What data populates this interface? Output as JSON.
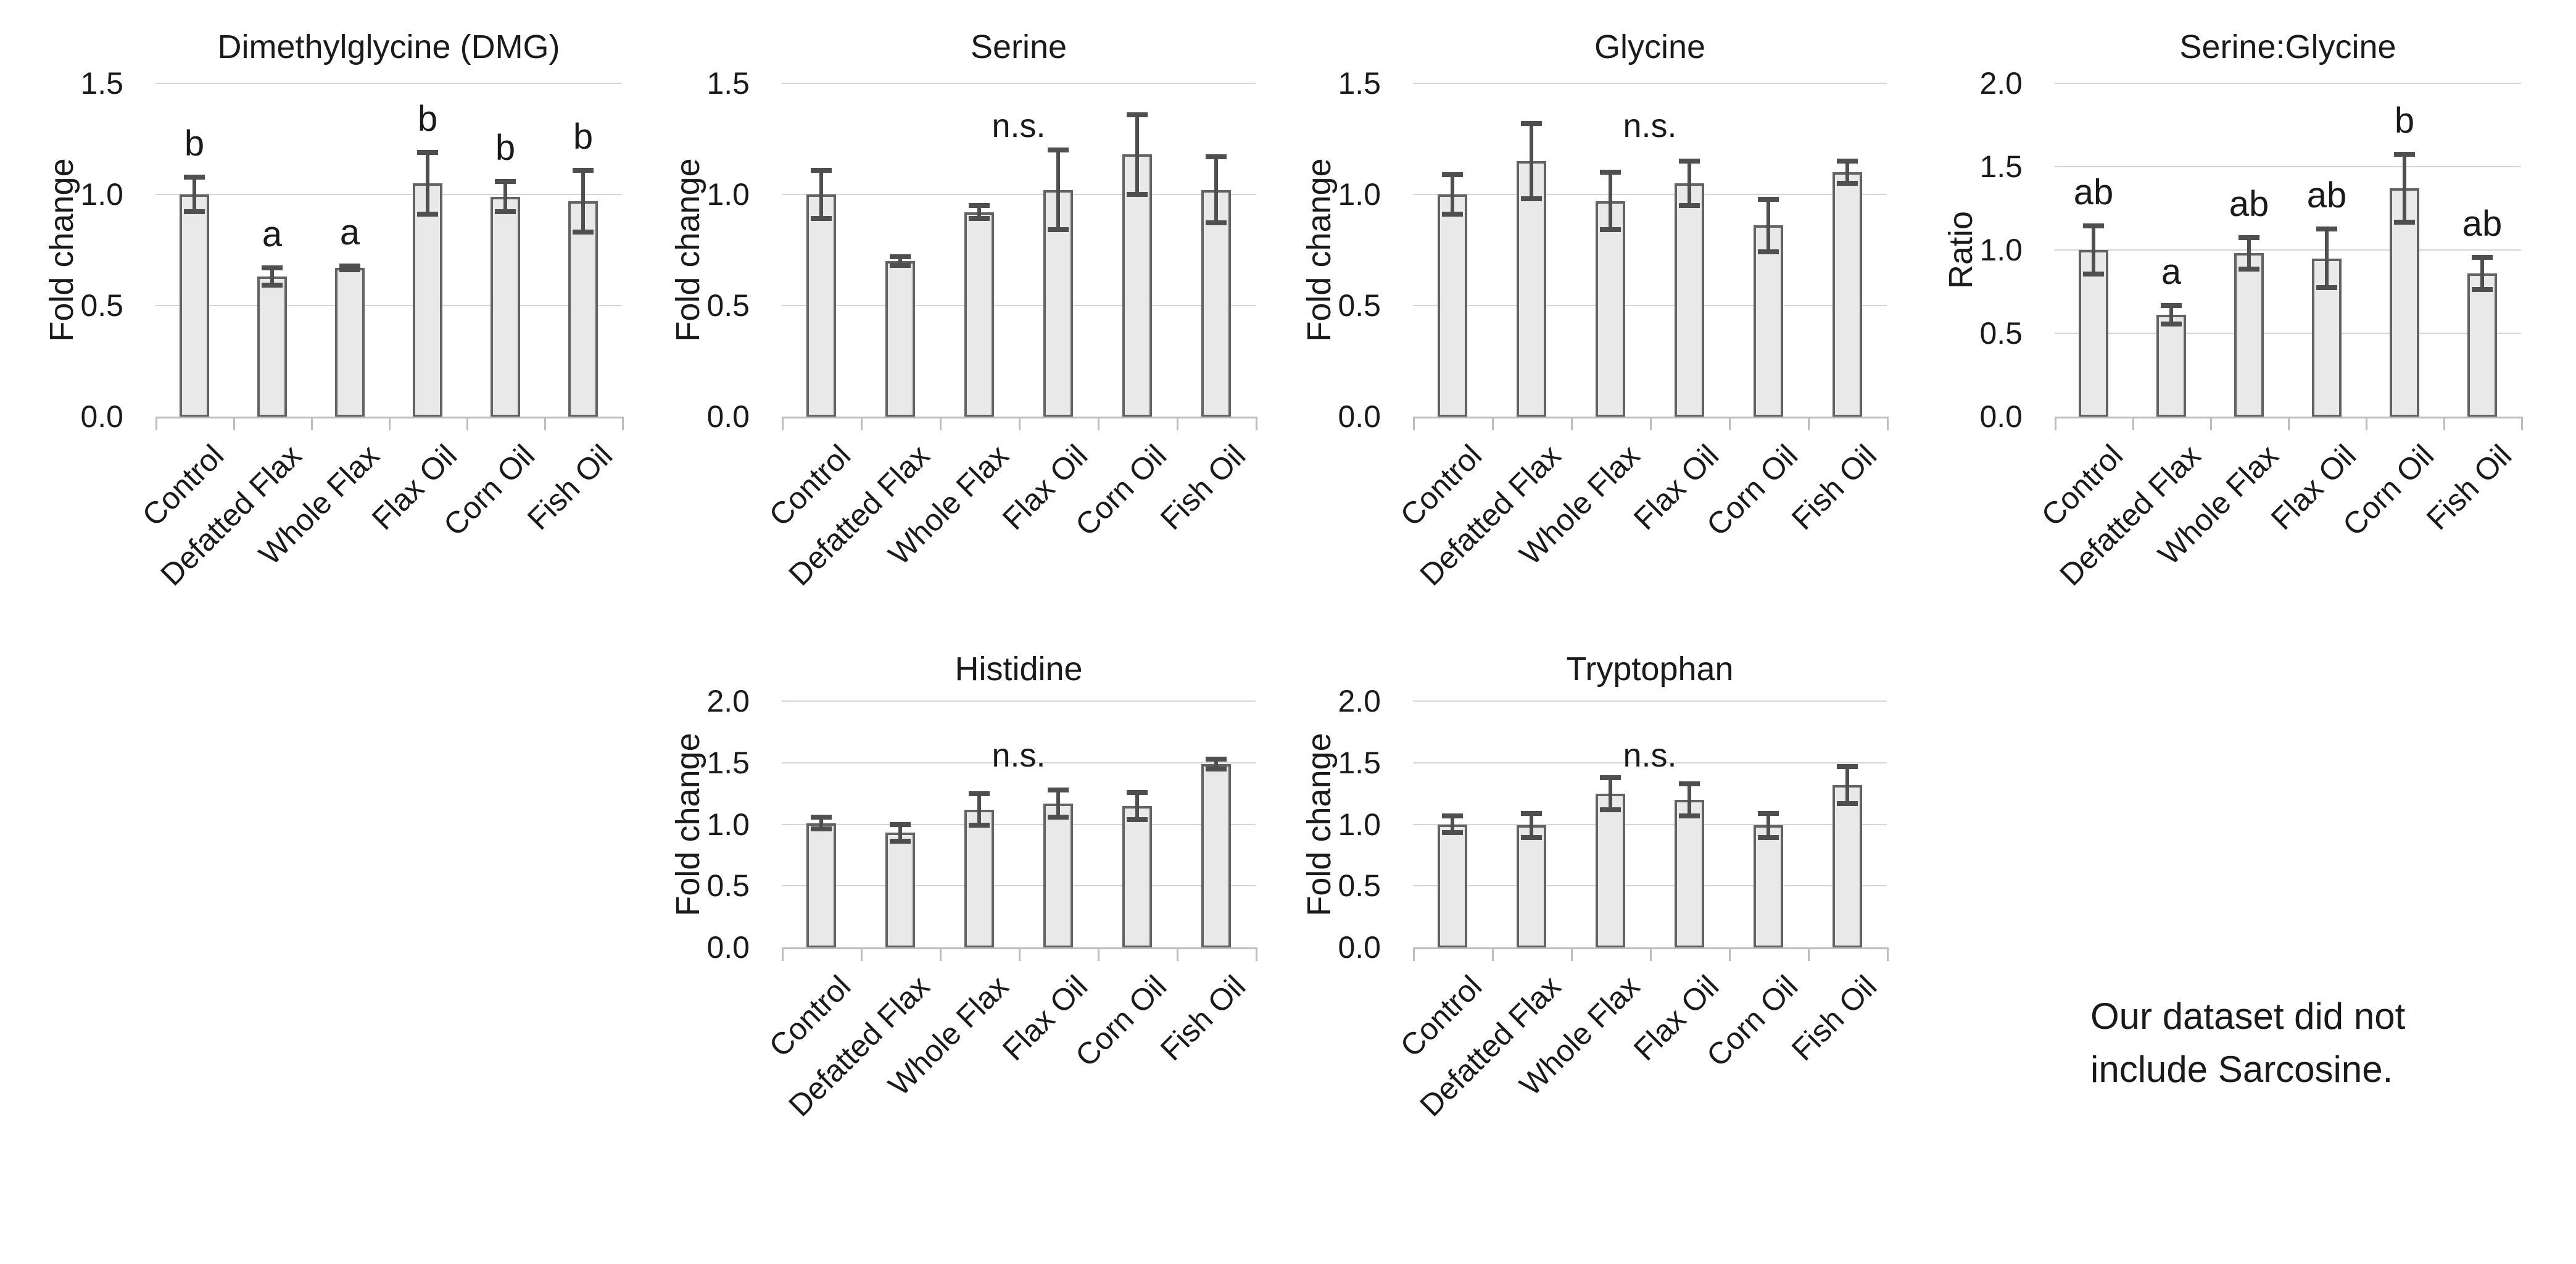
{
  "figure": {
    "background": "#ffffff",
    "note": {
      "line1": "Our dataset did not",
      "line2": "include Sarcosine."
    }
  },
  "colors": {
    "bar_fill": "#e9e9e9",
    "bar_border": "#636363",
    "error_bar": "#4f4f4f",
    "gridline": "#d6d6d6",
    "axis": "#bdbdbd",
    "text": "#1a1a1a"
  },
  "chart_data": [
    {
      "type": "bar",
      "title": "Dimethylglycine (DMG)",
      "ylabel": "Fold change",
      "ylim": [
        0,
        1.5
      ],
      "yticks": [
        "0.0",
        "0.5",
        "1.0",
        "1.5"
      ],
      "grid": true,
      "legend": "none",
      "categories": [
        "Control",
        "Defatted Flax",
        "Whole Flax",
        "Flax Oil",
        "Corn Oil",
        "Fish Oil"
      ],
      "values": [
        1.0,
        0.63,
        0.67,
        1.05,
        0.99,
        0.97
      ],
      "errors": [
        0.09,
        0.05,
        0.02,
        0.15,
        0.08,
        0.15
      ],
      "sig_letters": [
        "b",
        "a",
        "a",
        "b",
        "b",
        "b"
      ],
      "significance": null
    },
    {
      "type": "bar",
      "title": "Serine",
      "ylabel": "Fold change",
      "ylim": [
        0,
        1.5
      ],
      "yticks": [
        "0.0",
        "0.5",
        "1.0",
        "1.5"
      ],
      "grid": true,
      "legend": "none",
      "categories": [
        "Control",
        "Defatted Flax",
        "Whole Flax",
        "Flax Oil",
        "Corn Oil",
        "Fish Oil"
      ],
      "values": [
        1.0,
        0.7,
        0.92,
        1.02,
        1.18,
        1.02
      ],
      "errors": [
        0.12,
        0.03,
        0.04,
        0.19,
        0.19,
        0.16
      ],
      "sig_letters": null,
      "significance": "n.s."
    },
    {
      "type": "bar",
      "title": "Glycine",
      "ylabel": "Fold change",
      "ylim": [
        0,
        1.5
      ],
      "yticks": [
        "0.0",
        "0.5",
        "1.0",
        "1.5"
      ],
      "grid": true,
      "legend": "none",
      "categories": [
        "Control",
        "Defatted Flax",
        "Whole Flax",
        "Flax Oil",
        "Corn Oil",
        "Fish Oil"
      ],
      "values": [
        1.0,
        1.15,
        0.97,
        1.05,
        0.86,
        1.1
      ],
      "errors": [
        0.1,
        0.18,
        0.14,
        0.11,
        0.13,
        0.06
      ],
      "sig_letters": null,
      "significance": "n.s."
    },
    {
      "type": "bar",
      "title": "Serine:Glycine",
      "ylabel": "Ratio",
      "ylim": [
        0,
        2.0
      ],
      "yticks": [
        "0.0",
        "0.5",
        "1.0",
        "1.5",
        "2.0"
      ],
      "grid": true,
      "legend": "none",
      "categories": [
        "Control",
        "Defatted Flax",
        "Whole Flax",
        "Flax Oil",
        "Corn Oil",
        "Fish Oil"
      ],
      "values": [
        1.0,
        0.61,
        0.98,
        0.95,
        1.37,
        0.86
      ],
      "errors": [
        0.16,
        0.07,
        0.11,
        0.19,
        0.22,
        0.11
      ],
      "sig_letters": [
        "ab",
        "a",
        "ab",
        "ab",
        "b",
        "ab"
      ],
      "significance": null
    },
    {
      "type": "bar",
      "title": "Histidine",
      "ylabel": "Fold change",
      "ylim": [
        0,
        2.0
      ],
      "yticks": [
        "0.0",
        "0.5",
        "1.0",
        "1.5",
        "2.0"
      ],
      "grid": true,
      "legend": "none",
      "categories": [
        "Control",
        "Defatted Flax",
        "Whole Flax",
        "Flax Oil",
        "Corn Oil",
        "Fish Oil"
      ],
      "values": [
        1.01,
        0.93,
        1.12,
        1.17,
        1.15,
        1.49
      ],
      "errors": [
        0.07,
        0.09,
        0.15,
        0.13,
        0.13,
        0.06
      ],
      "sig_letters": null,
      "significance": "n.s."
    },
    {
      "type": "bar",
      "title": "Tryptophan",
      "ylabel": "Fold change",
      "ylim": [
        0,
        2.0
      ],
      "yticks": [
        "0.0",
        "0.5",
        "1.0",
        "1.5",
        "2.0"
      ],
      "grid": true,
      "legend": "none",
      "categories": [
        "Control",
        "Defatted Flax",
        "Whole Flax",
        "Flax Oil",
        "Corn Oil",
        "Fish Oil"
      ],
      "values": [
        1.0,
        0.99,
        1.25,
        1.2,
        0.99,
        1.32
      ],
      "errors": [
        0.09,
        0.12,
        0.15,
        0.15,
        0.12,
        0.17
      ],
      "sig_letters": null,
      "significance": "n.s."
    }
  ]
}
